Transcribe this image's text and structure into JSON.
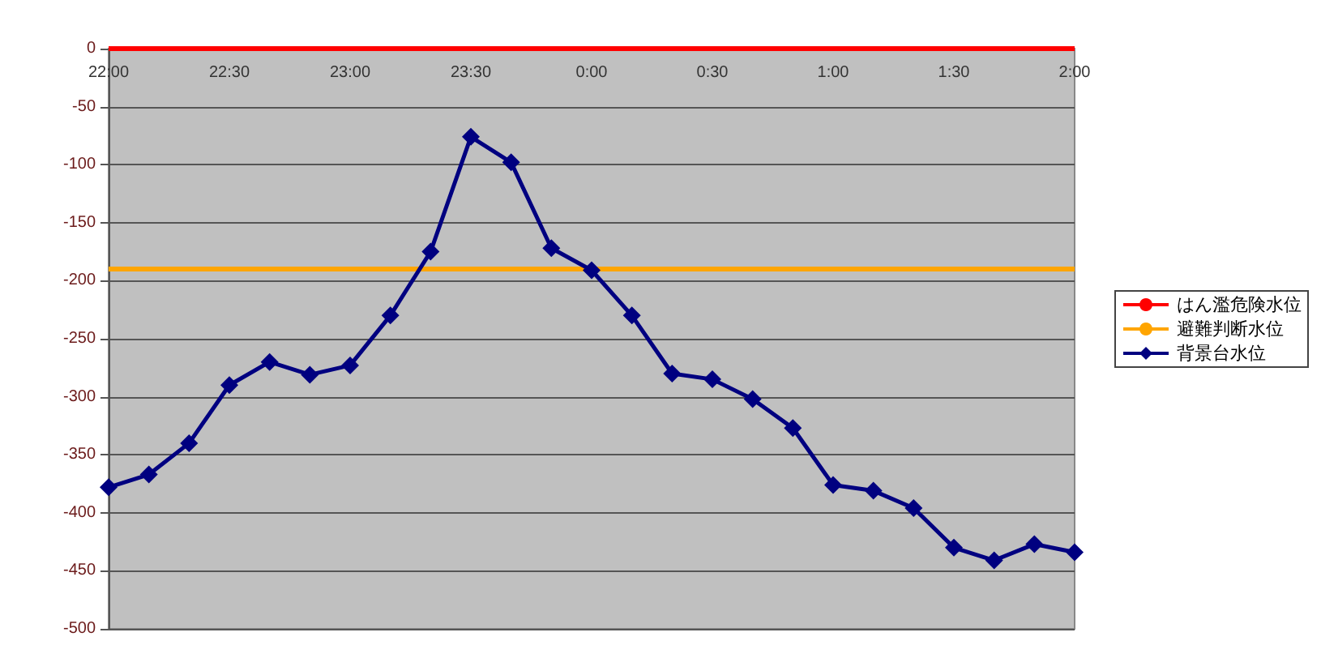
{
  "chart_data": {
    "type": "line",
    "categories": [
      "22:00",
      null,
      null,
      "22:30",
      null,
      null,
      "23:00",
      null,
      null,
      "23:30",
      null,
      null,
      "0:00",
      null,
      null,
      "0:30",
      null,
      null,
      "1:00",
      null,
      null,
      "1:30",
      null,
      null,
      "2:00"
    ],
    "series": [
      {
        "name": "はん濫危険水位",
        "color": "#ff0000",
        "marker": "none",
        "values": [
          0,
          0,
          0,
          0,
          0,
          0,
          0,
          0,
          0,
          0,
          0,
          0,
          0,
          0,
          0,
          0,
          0,
          0,
          0,
          0,
          0,
          0,
          0,
          0,
          0
        ]
      },
      {
        "name": "避難判断水位",
        "color": "#ffa500",
        "marker": "none",
        "values": [
          -190,
          -190,
          -190,
          -190,
          -190,
          -190,
          -190,
          -190,
          -190,
          -190,
          -190,
          -190,
          -190,
          -190,
          -190,
          -190,
          -190,
          -190,
          -190,
          -190,
          -190,
          -190,
          -190,
          -190,
          -190
        ]
      },
      {
        "name": "背景台水位",
        "color": "#000080",
        "marker": "diamond",
        "values": [
          -378,
          -367,
          -340,
          -290,
          -270,
          -281,
          -273,
          -230,
          -175,
          -76,
          -98,
          -172,
          -191,
          -230,
          -280,
          -285,
          -302,
          -327,
          -376,
          -381,
          -396,
          -430,
          -441,
          -427,
          -434
        ]
      }
    ],
    "ylim": [
      -500,
      0
    ],
    "yticks": [
      -500,
      -450,
      -400,
      -350,
      -300,
      -250,
      -200,
      -150,
      -100,
      -50,
      0
    ],
    "grid": "y",
    "legend": "right"
  }
}
